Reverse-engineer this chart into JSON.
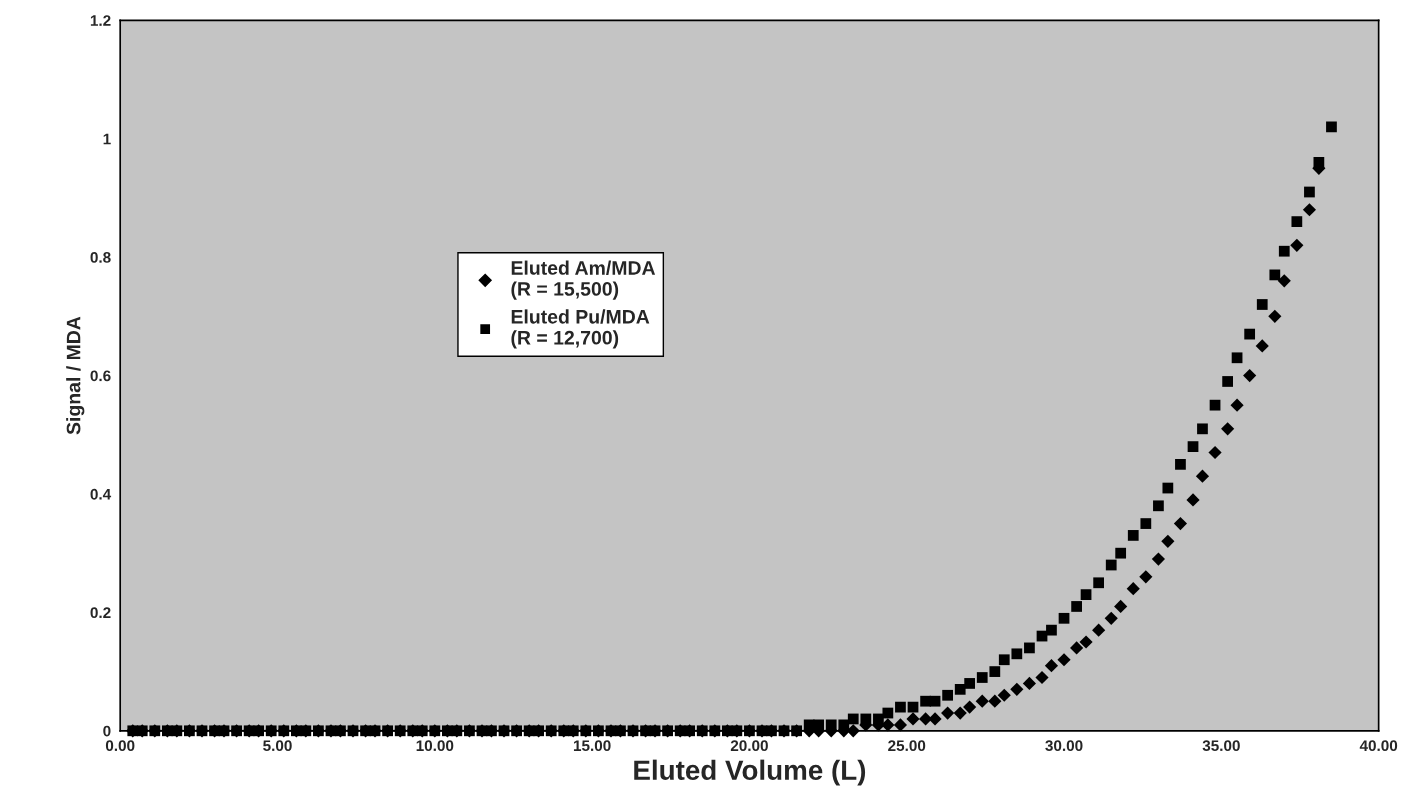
{
  "chart_data": {
    "type": "scatter",
    "xlabel": "Eluted Volume (L)",
    "ylabel": "Signal / MDA",
    "xlim": [
      0,
      40
    ],
    "ylim": [
      0,
      1.2
    ],
    "xticks": [
      {
        "value": 0,
        "label": "0.00"
      },
      {
        "value": 5,
        "label": "5.00"
      },
      {
        "value": 10,
        "label": "10.00"
      },
      {
        "value": 15,
        "label": "15.00"
      },
      {
        "value": 20,
        "label": "20.00"
      },
      {
        "value": 25,
        "label": "25.00"
      },
      {
        "value": 30,
        "label": "30.00"
      },
      {
        "value": 35,
        "label": "35.00"
      },
      {
        "value": 40,
        "label": "40.00"
      }
    ],
    "yticks": [
      0,
      0.2,
      0.4,
      0.6,
      0.8,
      1,
      1.2
    ],
    "grid": false,
    "legend": "center",
    "x": [
      0.4,
      0.7,
      1.1,
      1.5,
      1.8,
      2.2,
      2.6,
      3.0,
      3.3,
      3.7,
      4.1,
      4.4,
      4.8,
      5.2,
      5.6,
      5.9,
      6.3,
      6.7,
      7.0,
      7.4,
      7.8,
      8.1,
      8.5,
      8.9,
      9.3,
      9.6,
      10.0,
      10.4,
      10.7,
      11.1,
      11.5,
      11.8,
      12.2,
      12.6,
      13.0,
      13.3,
      13.7,
      14.1,
      14.4,
      14.8,
      15.2,
      15.6,
      15.9,
      16.3,
      16.7,
      17.0,
      17.4,
      17.8,
      18.1,
      18.5,
      18.9,
      19.3,
      19.6,
      20.0,
      20.4,
      20.7,
      21.1,
      21.5,
      21.9,
      22.2,
      22.6,
      23.0,
      23.3,
      23.7,
      24.1,
      24.4,
      24.8,
      25.2,
      25.6,
      25.9,
      26.3,
      26.7,
      27.0,
      27.4,
      27.8,
      28.1,
      28.5,
      28.9,
      29.3,
      29.6,
      30.0,
      30.4,
      30.7,
      31.1,
      31.5,
      31.8,
      32.2,
      32.6,
      33.0,
      33.3,
      33.7,
      34.1,
      34.4,
      34.8,
      35.2,
      35.5,
      35.9,
      36.3,
      36.7,
      37.0,
      37.4,
      37.8,
      38.1,
      38.5
    ],
    "series": [
      {
        "name": "Eluted Am/MDA\n(R = 15,500)",
        "color": "#000000",
        "marker": "diamond",
        "values": [
          0,
          0,
          0,
          0,
          0,
          0,
          0,
          0,
          0,
          0,
          0,
          0,
          0,
          0,
          0,
          0,
          0,
          0,
          0,
          0,
          0,
          0,
          0,
          0,
          0,
          0,
          0,
          0,
          0,
          0,
          0,
          0,
          0,
          0,
          0,
          0,
          0,
          0,
          0,
          0,
          0,
          0,
          0,
          0,
          0,
          0,
          0,
          0,
          0,
          0,
          0,
          0,
          0,
          0,
          0,
          0,
          0,
          0,
          0,
          0,
          0,
          0,
          0,
          0.01,
          0.01,
          0.01,
          0.01,
          0.02,
          0.02,
          0.02,
          0.03,
          0.03,
          0.04,
          0.05,
          0.05,
          0.06,
          0.07,
          0.08,
          0.09,
          0.11,
          0.12,
          0.14,
          0.15,
          0.17,
          0.19,
          0.21,
          0.24,
          0.26,
          0.29,
          0.32,
          0.35,
          0.39,
          0.43,
          0.47,
          0.51,
          0.55,
          0.6,
          0.65,
          0.7,
          0.76,
          0.82,
          0.88,
          0.95,
          null
        ]
      },
      {
        "name": "Eluted Pu/MDA\n(R = 12,700)",
        "color": "#000000",
        "marker": "square",
        "values": [
          0,
          0,
          0,
          0,
          0,
          0,
          0,
          0,
          0,
          0,
          0,
          0,
          0,
          0,
          0,
          0,
          0,
          0,
          0,
          0,
          0,
          0,
          0,
          0,
          0,
          0,
          0,
          0,
          0,
          0,
          0,
          0,
          0,
          0,
          0,
          0,
          0,
          0,
          0,
          0,
          0,
          0,
          0,
          0,
          0,
          0,
          0,
          0,
          0,
          0,
          0,
          0,
          0,
          0,
          0,
          0,
          0,
          0,
          0.01,
          0.01,
          0.01,
          0.01,
          0.02,
          0.02,
          0.02,
          0.03,
          0.04,
          0.04,
          0.05,
          0.05,
          0.06,
          0.07,
          0.08,
          0.09,
          0.1,
          0.12,
          0.13,
          0.14,
          0.16,
          0.17,
          0.19,
          0.21,
          0.23,
          0.25,
          0.28,
          0.3,
          0.33,
          0.35,
          0.38,
          0.41,
          0.45,
          0.48,
          0.51,
          0.55,
          0.59,
          0.63,
          0.67,
          0.72,
          0.77,
          0.81,
          0.86,
          0.91,
          0.96,
          1.02
        ]
      }
    ]
  }
}
